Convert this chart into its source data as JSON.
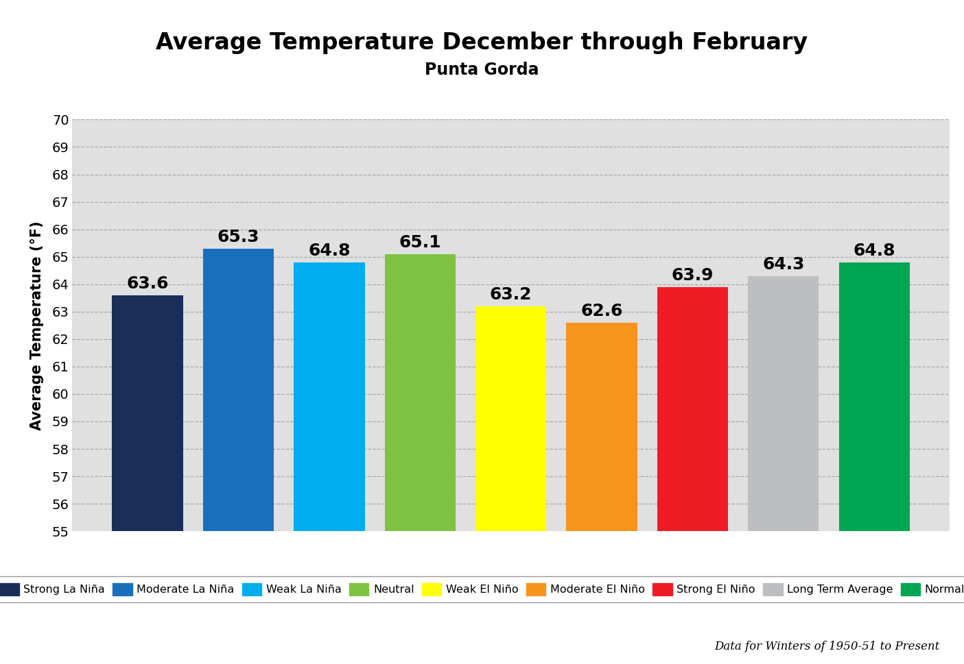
{
  "title": "Average Temperature December through February",
  "subtitle": "Punta Gorda",
  "ylabel": "Average Temperature (°F)",
  "categories": [
    "Strong La Niña",
    "Moderate La Niña",
    "Weak La Niña",
    "Neutral",
    "Weak El Niño",
    "Moderate El Niño",
    "Strong El Niño",
    "Long Term Average",
    "Normal"
  ],
  "values": [
    63.6,
    65.3,
    64.8,
    65.1,
    63.2,
    62.6,
    63.9,
    64.3,
    64.8
  ],
  "bar_colors": [
    "#1a2e5a",
    "#1a6fbd",
    "#00aeef",
    "#7dc242",
    "#ffff00",
    "#f7941d",
    "#ee1c25",
    "#bcbec0",
    "#00a651"
  ],
  "ylim": [
    55,
    70
  ],
  "ymin": 55,
  "yticks": [
    55,
    56,
    57,
    58,
    59,
    60,
    61,
    62,
    63,
    64,
    65,
    66,
    67,
    68,
    69,
    70
  ],
  "grid_color": "#aaaaaa",
  "bg_color": "#e0e0e0",
  "footnote": "Data for Winters of 1950-51 to Present",
  "legend_labels": [
    "Strong La Niña",
    "Moderate La Niña",
    "Weak La Niña",
    "Neutral",
    "Weak El Niño",
    "Moderate El Niño",
    "Strong El Niño",
    "Long Term Average",
    "Normal"
  ],
  "title_fontsize": 24,
  "subtitle_fontsize": 17,
  "ylabel_fontsize": 15,
  "bar_label_fontsize": 18,
  "legend_fontsize": 11.5,
  "footnote_fontsize": 12,
  "ytick_fontsize": 14
}
